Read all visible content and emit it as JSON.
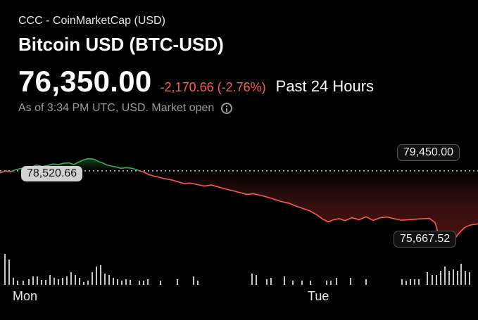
{
  "header": {
    "source": "CCC - CoinMarketCap (USD)",
    "title": "Bitcoin USD (BTC-USD)",
    "price": "76,350.00",
    "change": "-2,170.66 (-2.76%)",
    "period": "Past 24 Hours",
    "as_of": "As of 3:34 PM UTC, USD. Market open"
  },
  "chart_labels": {
    "high": "79,450.00",
    "previous_close": "78,520.66",
    "low": "75,667.52"
  },
  "chart_data": {
    "type": "line",
    "ylim": [
      75350,
      79900
    ],
    "previous_close": 78520.66,
    "colors": {
      "up": "#3fae5c",
      "down": "#ff5b50",
      "volume": "#c8c8c8",
      "reference": "#cfcfcf"
    },
    "x_ticks": [
      "Mon",
      "Tue"
    ],
    "x": [
      0,
      8,
      15,
      22,
      30,
      38,
      45,
      52,
      60,
      68,
      75,
      83,
      90,
      98,
      105,
      112,
      118,
      125,
      130,
      134,
      140,
      146,
      152,
      158,
      165,
      172,
      178,
      185,
      192,
      198,
      205,
      212,
      220,
      228,
      236,
      245,
      254,
      262,
      270,
      280,
      290,
      300,
      310,
      320,
      330,
      340,
      350,
      360,
      370,
      380,
      390,
      400,
      410,
      420,
      430,
      440,
      450,
      458,
      466,
      474,
      482,
      490,
      500,
      510,
      520,
      530,
      540,
      550,
      560,
      570,
      580,
      590,
      600,
      610,
      618,
      622,
      628,
      634,
      640,
      645,
      650,
      655,
      660,
      668,
      679
    ],
    "values": [
      78440,
      78520,
      78490,
      78560,
      78620,
      78590,
      78680,
      78760,
      78700,
      78740,
      78800,
      78780,
      78830,
      78850,
      78780,
      78880,
      78960,
      79020,
      79010,
      78990,
      78900,
      78840,
      78760,
      78720,
      78680,
      78620,
      78650,
      78640,
      78590,
      78520,
      78460,
      78360,
      78300,
      78240,
      78190,
      78140,
      78060,
      78000,
      78020,
      77960,
      77900,
      77940,
      77860,
      77780,
      77710,
      77640,
      77560,
      77580,
      77520,
      77440,
      77350,
      77260,
      77200,
      77080,
      76980,
      76880,
      76720,
      76550,
      76430,
      76520,
      76560,
      76480,
      76600,
      76520,
      76640,
      76490,
      76600,
      76630,
      76560,
      76500,
      76520,
      76540,
      76560,
      76570,
      76400,
      76000,
      75820,
      75680,
      75600,
      75690,
      75900,
      76060,
      76200,
      76300,
      76350
    ],
    "volume": [
      {
        "x": 7,
        "h": 44
      },
      {
        "x": 13,
        "h": 36
      },
      {
        "x": 19,
        "h": 10
      },
      {
        "x": 25,
        "h": 6
      },
      {
        "x": 33,
        "h": 6
      },
      {
        "x": 41,
        "h": 8
      },
      {
        "x": 47,
        "h": 12
      },
      {
        "x": 53,
        "h": 12
      },
      {
        "x": 59,
        "h": 7
      },
      {
        "x": 65,
        "h": 7
      },
      {
        "x": 71,
        "h": 14
      },
      {
        "x": 77,
        "h": 10
      },
      {
        "x": 83,
        "h": 8
      },
      {
        "x": 89,
        "h": 10
      },
      {
        "x": 95,
        "h": 12
      },
      {
        "x": 101,
        "h": 18
      },
      {
        "x": 107,
        "h": 14
      },
      {
        "x": 113,
        "h": 10
      },
      {
        "x": 119,
        "h": 4
      },
      {
        "x": 125,
        "h": 6
      },
      {
        "x": 131,
        "h": 18
      },
      {
        "x": 137,
        "h": 26
      },
      {
        "x": 143,
        "h": 28
      },
      {
        "x": 149,
        "h": 16
      },
      {
        "x": 155,
        "h": 14
      },
      {
        "x": 161,
        "h": 10
      },
      {
        "x": 167,
        "h": 8
      },
      {
        "x": 173,
        "h": 6
      },
      {
        "x": 179,
        "h": 8
      },
      {
        "x": 185,
        "h": 7
      },
      {
        "x": 198,
        "h": 6
      },
      {
        "x": 204,
        "h": 6
      },
      {
        "x": 210,
        "h": 8
      },
      {
        "x": 228,
        "h": 6
      },
      {
        "x": 252,
        "h": 8
      },
      {
        "x": 275,
        "h": 12
      },
      {
        "x": 281,
        "h": 6
      },
      {
        "x": 358,
        "h": 16
      },
      {
        "x": 364,
        "h": 14
      },
      {
        "x": 379,
        "h": 8
      },
      {
        "x": 385,
        "h": 10
      },
      {
        "x": 404,
        "h": 12
      },
      {
        "x": 416,
        "h": 6
      },
      {
        "x": 429,
        "h": 6
      },
      {
        "x": 441,
        "h": 6
      },
      {
        "x": 464,
        "h": 6
      },
      {
        "x": 470,
        "h": 6
      },
      {
        "x": 478,
        "h": 10
      },
      {
        "x": 498,
        "h": 10
      },
      {
        "x": 520,
        "h": 8
      },
      {
        "x": 571,
        "h": 8
      },
      {
        "x": 577,
        "h": 6
      },
      {
        "x": 583,
        "h": 8
      },
      {
        "x": 589,
        "h": 8
      },
      {
        "x": 595,
        "h": 8
      },
      {
        "x": 607,
        "h": 18
      },
      {
        "x": 614,
        "h": 14
      },
      {
        "x": 620,
        "h": 14
      },
      {
        "x": 626,
        "h": 20
      },
      {
        "x": 632,
        "h": 26
      },
      {
        "x": 638,
        "h": 20
      },
      {
        "x": 644,
        "h": 22
      },
      {
        "x": 650,
        "h": 20
      },
      {
        "x": 655,
        "h": 30
      },
      {
        "x": 661,
        "h": 20
      },
      {
        "x": 667,
        "h": 18
      }
    ]
  }
}
